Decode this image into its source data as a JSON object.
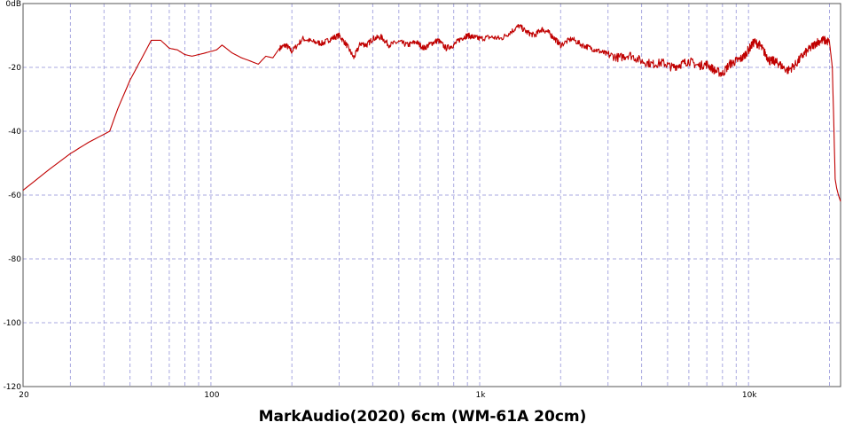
{
  "chart_data": {
    "type": "line",
    "title": "MarkAudio(2020) 6cm  (WM-61A 20cm)",
    "xlabel": "",
    "ylabel": "",
    "x_scale": "log",
    "xlim": [
      20,
      22000
    ],
    "ylim": [
      -120,
      0
    ],
    "grid": true,
    "y_ticks": [
      {
        "value": 0,
        "label": "0dB"
      },
      {
        "value": -20,
        "label": "-20"
      },
      {
        "value": -40,
        "label": "-40"
      },
      {
        "value": -60,
        "label": "-60"
      },
      {
        "value": -80,
        "label": "-80"
      },
      {
        "value": -100,
        "label": "-100"
      },
      {
        "value": -120,
        "label": "-120"
      }
    ],
    "x_ticks": [
      {
        "value": 20,
        "label": "20"
      },
      {
        "value": 100,
        "label": "100"
      },
      {
        "value": 1000,
        "label": "1k"
      },
      {
        "value": 10000,
        "label": "10k"
      }
    ],
    "line_color": "#c00000",
    "grid_color": "#a8a8e0",
    "series": [
      {
        "x": [
          20,
          25,
          30,
          35,
          42,
          45,
          50,
          55,
          60,
          65,
          70,
          75,
          80,
          85,
          90,
          95,
          100,
          105,
          110,
          120,
          130,
          140,
          150,
          160,
          170,
          180,
          190,
          200,
          220,
          240,
          260,
          280,
          300,
          320,
          340,
          360,
          380,
          400,
          430,
          460,
          500,
          540,
          580,
          620,
          660,
          700,
          750,
          800,
          850,
          900,
          950,
          1000,
          1100,
          1200,
          1300,
          1400,
          1500,
          1600,
          1700,
          1800,
          1900,
          2000,
          2200,
          2400,
          2600,
          2800,
          3000,
          3300,
          3600,
          4000,
          4400,
          4800,
          5200,
          5600,
          6000,
          6500,
          7000,
          7500,
          8000,
          8500,
          9000,
          9500,
          10000,
          10500,
          11000,
          11500,
          12000,
          12500,
          13000,
          14000,
          15000,
          16000,
          17000,
          18000,
          19000,
          20000,
          20500,
          20800,
          21000,
          21300,
          21600,
          22000
        ],
        "values": [
          -58.5,
          -52,
          -47,
          -43.5,
          -40,
          -33,
          -24,
          -17.5,
          -11.5,
          -11.5,
          -14,
          -14.5,
          -16,
          -16.5,
          -16,
          -15.5,
          -15,
          -14.5,
          -13,
          -15.5,
          -17,
          -18,
          -19,
          -16.5,
          -17,
          -14,
          -13,
          -15,
          -11,
          -12,
          -12.5,
          -11,
          -10,
          -13,
          -17,
          -12.5,
          -13,
          -11,
          -10.5,
          -13,
          -12,
          -13,
          -12,
          -14,
          -12.5,
          -11.5,
          -14,
          -13,
          -11,
          -10,
          -10.5,
          -11,
          -10.5,
          -11,
          -9,
          -7,
          -9,
          -10,
          -8,
          -9,
          -11,
          -13,
          -11,
          -13,
          -14,
          -15,
          -16,
          -17,
          -16,
          -18,
          -19,
          -18.5,
          -20,
          -19,
          -18,
          -19.5,
          -19,
          -21,
          -22,
          -19,
          -18,
          -17,
          -14.5,
          -12,
          -13,
          -15.5,
          -18,
          -18,
          -19,
          -21,
          -19,
          -16,
          -14,
          -12,
          -11.5,
          -12,
          -20,
          -40,
          -55,
          -58,
          -60,
          -62
        ]
      }
    ]
  }
}
